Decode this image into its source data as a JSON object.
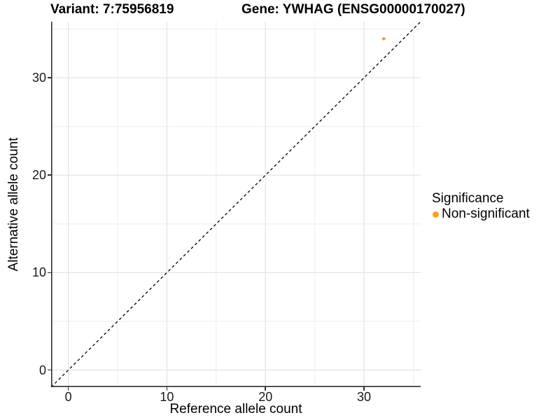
{
  "titles": {
    "variant": "Variant: 7:75956819",
    "gene": "Gene: YWHAG (ENSG00000170027)"
  },
  "axes": {
    "x_label": "Reference allele count",
    "y_label": "Alternative allele count",
    "x_ticks": [
      0,
      10,
      20,
      30
    ],
    "y_ticks": [
      0,
      10,
      20,
      30
    ]
  },
  "legend": {
    "title": "Significance",
    "items": [
      {
        "label": "Non-significant",
        "color": "#FC9E24"
      }
    ]
  },
  "colors": {
    "point": "#FC9E24",
    "axis_line": "#2E2E2E",
    "grid_major": "#E2E2E2",
    "grid_minor": "#EDEDED",
    "reference_line": "#000000",
    "background": "#FFFFFF"
  },
  "chart_data": {
    "type": "scatter",
    "title": "Variant: 7:75956819   Gene: YWHAG (ENSG00000170027)",
    "xlabel": "Reference allele count",
    "ylabel": "Alternative allele count",
    "xlim": [
      -1.75,
      35.75
    ],
    "ylim": [
      -1.75,
      35.75
    ],
    "x_ticks": [
      0,
      10,
      20,
      30
    ],
    "y_ticks": [
      0,
      10,
      20,
      30
    ],
    "grid": true,
    "grid_major": [
      0,
      10,
      20,
      30
    ],
    "grid_minor": [
      5,
      15,
      25,
      35
    ],
    "legend_position": "right",
    "series": [
      {
        "name": "Non-significant",
        "color": "#FC9E24",
        "points": [
          {
            "x": 32,
            "y": 34
          }
        ]
      }
    ],
    "reference_line": {
      "type": "identity y=x",
      "style": "dashed",
      "color": "#000000",
      "from": [
        -1.75,
        -1.75
      ],
      "to": [
        35.75,
        35.75
      ]
    }
  }
}
